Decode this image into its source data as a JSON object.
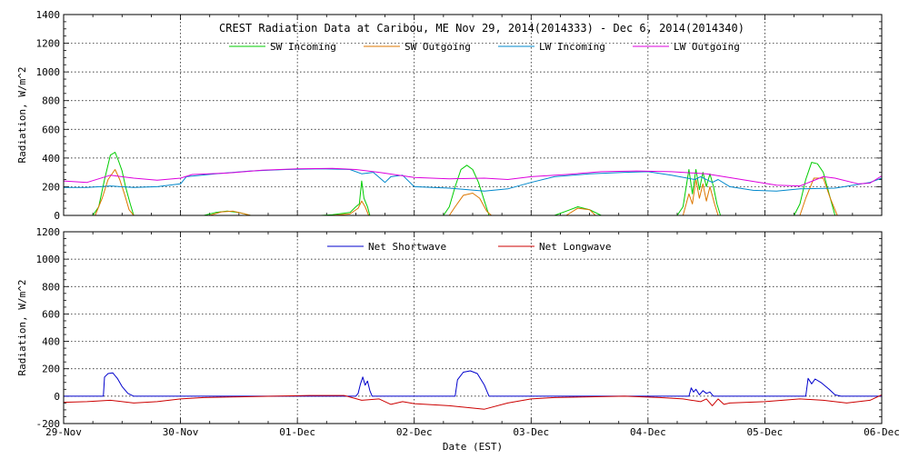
{
  "chart_data": [
    {
      "type": "line",
      "title": "CREST Radiation Data at Caribou, ME   Nov 29, 2014(2014333) - Dec  6, 2014(2014340)",
      "ylabel": "Radiation, W/m^2",
      "xlabel": "",
      "ylim": [
        0,
        1400
      ],
      "yticks": [
        0,
        200,
        400,
        600,
        800,
        1000,
        1200,
        1400
      ],
      "xlim": [
        "2014-11-29",
        "2014-12-06"
      ],
      "xticks": [
        "29-Nov",
        "30-Nov",
        "01-Dec",
        "02-Dec",
        "03-Dec",
        "04-Dec",
        "05-Dec",
        "06-Dec"
      ],
      "grid": true,
      "legend_position": "top",
      "series": [
        {
          "name": "SW Incoming",
          "color": "#00cc00",
          "points": [
            [
              0,
              0
            ],
            [
              0.25,
              0
            ],
            [
              0.3,
              60
            ],
            [
              0.35,
              250
            ],
            [
              0.4,
              420
            ],
            [
              0.44,
              440
            ],
            [
              0.47,
              380
            ],
            [
              0.5,
              310
            ],
            [
              0.53,
              200
            ],
            [
              0.57,
              80
            ],
            [
              0.6,
              0
            ],
            [
              1.2,
              0
            ],
            [
              1.3,
              20
            ],
            [
              1.4,
              30
            ],
            [
              1.5,
              20
            ],
            [
              1.6,
              0
            ],
            [
              2.2,
              0
            ],
            [
              2.3,
              5
            ],
            [
              2.45,
              20
            ],
            [
              2.5,
              60
            ],
            [
              2.53,
              80
            ],
            [
              2.55,
              240
            ],
            [
              2.57,
              120
            ],
            [
              2.6,
              60
            ],
            [
              2.62,
              0
            ],
            [
              3.25,
              0
            ],
            [
              3.3,
              60
            ],
            [
              3.35,
              200
            ],
            [
              3.4,
              320
            ],
            [
              3.45,
              350
            ],
            [
              3.5,
              320
            ],
            [
              3.55,
              230
            ],
            [
              3.6,
              100
            ],
            [
              3.64,
              0
            ],
            [
              4.2,
              0
            ],
            [
              4.3,
              30
            ],
            [
              4.4,
              60
            ],
            [
              4.5,
              40
            ],
            [
              4.6,
              0
            ],
            [
              5.25,
              0
            ],
            [
              5.3,
              60
            ],
            [
              5.35,
              320
            ],
            [
              5.38,
              150
            ],
            [
              5.41,
              320
            ],
            [
              5.44,
              180
            ],
            [
              5.47,
              300
            ],
            [
              5.5,
              200
            ],
            [
              5.53,
              290
            ],
            [
              5.56,
              200
            ],
            [
              5.59,
              80
            ],
            [
              5.62,
              0
            ],
            [
              6.25,
              0
            ],
            [
              6.3,
              80
            ],
            [
              6.35,
              250
            ],
            [
              6.4,
              370
            ],
            [
              6.45,
              360
            ],
            [
              6.5,
              300
            ],
            [
              6.55,
              150
            ],
            [
              6.6,
              0
            ],
            [
              7,
              0
            ]
          ]
        },
        {
          "name": "SW Outgoing",
          "color": "#dd7700",
          "points": [
            [
              0,
              0
            ],
            [
              0.27,
              0
            ],
            [
              0.33,
              120
            ],
            [
              0.38,
              250
            ],
            [
              0.44,
              320
            ],
            [
              0.48,
              250
            ],
            [
              0.52,
              150
            ],
            [
              0.56,
              40
            ],
            [
              0.6,
              0
            ],
            [
              1.25,
              0
            ],
            [
              1.35,
              25
            ],
            [
              1.45,
              30
            ],
            [
              1.55,
              10
            ],
            [
              1.6,
              0
            ],
            [
              2.3,
              0
            ],
            [
              2.45,
              10
            ],
            [
              2.52,
              50
            ],
            [
              2.55,
              100
            ],
            [
              2.58,
              60
            ],
            [
              2.61,
              0
            ],
            [
              3.3,
              0
            ],
            [
              3.35,
              60
            ],
            [
              3.42,
              140
            ],
            [
              3.5,
              155
            ],
            [
              3.56,
              120
            ],
            [
              3.62,
              30
            ],
            [
              3.66,
              0
            ],
            [
              4.3,
              0
            ],
            [
              4.4,
              50
            ],
            [
              4.5,
              40
            ],
            [
              4.55,
              0
            ],
            [
              5.3,
              0
            ],
            [
              5.35,
              150
            ],
            [
              5.38,
              80
            ],
            [
              5.41,
              250
            ],
            [
              5.44,
              120
            ],
            [
              5.47,
              220
            ],
            [
              5.5,
              100
            ],
            [
              5.53,
              200
            ],
            [
              5.57,
              80
            ],
            [
              5.6,
              0
            ],
            [
              6.3,
              0
            ],
            [
              6.35,
              120
            ],
            [
              6.42,
              260
            ],
            [
              6.5,
              260
            ],
            [
              6.56,
              120
            ],
            [
              6.62,
              0
            ],
            [
              7,
              0
            ]
          ]
        },
        {
          "name": "LW Incoming",
          "color": "#0088cc",
          "points": [
            [
              0,
              195
            ],
            [
              0.2,
              195
            ],
            [
              0.4,
              205
            ],
            [
              0.6,
              195
            ],
            [
              0.8,
              200
            ],
            [
              1.0,
              220
            ],
            [
              1.05,
              270
            ],
            [
              1.3,
              290
            ],
            [
              1.6,
              310
            ],
            [
              1.9,
              320
            ],
            [
              2.2,
              325
            ],
            [
              2.45,
              320
            ],
            [
              2.55,
              290
            ],
            [
              2.65,
              300
            ],
            [
              2.75,
              230
            ],
            [
              2.8,
              270
            ],
            [
              2.9,
              280
            ],
            [
              3.0,
              200
            ],
            [
              3.3,
              190
            ],
            [
              3.6,
              170
            ],
            [
              3.8,
              185
            ],
            [
              4.0,
              230
            ],
            [
              4.2,
              270
            ],
            [
              4.5,
              290
            ],
            [
              4.8,
              300
            ],
            [
              5.0,
              305
            ],
            [
              5.2,
              280
            ],
            [
              5.4,
              250
            ],
            [
              5.45,
              270
            ],
            [
              5.55,
              230
            ],
            [
              5.6,
              250
            ],
            [
              5.7,
              200
            ],
            [
              5.9,
              175
            ],
            [
              6.1,
              170
            ],
            [
              6.3,
              185
            ],
            [
              6.6,
              190
            ],
            [
              6.9,
              230
            ],
            [
              7.0,
              260
            ]
          ]
        },
        {
          "name": "LW Outgoing",
          "color": "#dd00dd",
          "points": [
            [
              0,
              240
            ],
            [
              0.2,
              230
            ],
            [
              0.4,
              280
            ],
            [
              0.6,
              260
            ],
            [
              0.8,
              245
            ],
            [
              1.0,
              260
            ],
            [
              1.1,
              285
            ],
            [
              1.4,
              295
            ],
            [
              1.7,
              315
            ],
            [
              2.0,
              325
            ],
            [
              2.3,
              328
            ],
            [
              2.5,
              320
            ],
            [
              2.7,
              300
            ],
            [
              3.0,
              265
            ],
            [
              3.3,
              255
            ],
            [
              3.6,
              260
            ],
            [
              3.8,
              250
            ],
            [
              4.0,
              270
            ],
            [
              4.3,
              285
            ],
            [
              4.6,
              305
            ],
            [
              4.9,
              310
            ],
            [
              5.2,
              305
            ],
            [
              5.5,
              290
            ],
            [
              5.8,
              250
            ],
            [
              6.1,
              210
            ],
            [
              6.3,
              205
            ],
            [
              6.5,
              270
            ],
            [
              6.6,
              260
            ],
            [
              6.8,
              220
            ],
            [
              6.9,
              225
            ],
            [
              7.0,
              275
            ]
          ]
        }
      ]
    },
    {
      "type": "line",
      "title": "",
      "ylabel": "Radiation, W/m^2",
      "xlabel": "Date (EST)",
      "ylim": [
        -200,
        1200
      ],
      "yticks": [
        -200,
        0,
        200,
        400,
        600,
        800,
        1000,
        1200
      ],
      "xlim": [
        "2014-11-29",
        "2014-12-06"
      ],
      "xticks": [
        "29-Nov",
        "30-Nov",
        "01-Dec",
        "02-Dec",
        "03-Dec",
        "04-Dec",
        "05-Dec",
        "06-Dec"
      ],
      "grid": true,
      "legend_position": "top",
      "series": [
        {
          "name": "Net Shortwave",
          "color": "#0000cc",
          "points": [
            [
              0,
              0
            ],
            [
              0.34,
              0
            ],
            [
              0.35,
              140
            ],
            [
              0.38,
              165
            ],
            [
              0.42,
              170
            ],
            [
              0.46,
              130
            ],
            [
              0.5,
              70
            ],
            [
              0.55,
              20
            ],
            [
              0.6,
              0
            ],
            [
              2.5,
              0
            ],
            [
              2.52,
              20
            ],
            [
              2.54,
              90
            ],
            [
              2.56,
              140
            ],
            [
              2.58,
              80
            ],
            [
              2.6,
              110
            ],
            [
              2.62,
              40
            ],
            [
              2.64,
              0
            ],
            [
              3.35,
              0
            ],
            [
              3.37,
              120
            ],
            [
              3.42,
              175
            ],
            [
              3.48,
              185
            ],
            [
              3.54,
              165
            ],
            [
              3.6,
              80
            ],
            [
              3.64,
              0
            ],
            [
              5.35,
              0
            ],
            [
              5.37,
              60
            ],
            [
              5.39,
              30
            ],
            [
              5.41,
              50
            ],
            [
              5.44,
              10
            ],
            [
              5.47,
              40
            ],
            [
              5.5,
              20
            ],
            [
              5.53,
              30
            ],
            [
              5.56,
              0
            ],
            [
              6.35,
              0
            ],
            [
              6.37,
              130
            ],
            [
              6.4,
              90
            ],
            [
              6.43,
              125
            ],
            [
              6.48,
              100
            ],
            [
              6.55,
              50
            ],
            [
              6.6,
              10
            ],
            [
              6.65,
              0
            ],
            [
              7,
              0
            ]
          ]
        },
        {
          "name": "Net Longwave",
          "color": "#cc0000",
          "points": [
            [
              0,
              -45
            ],
            [
              0.2,
              -40
            ],
            [
              0.4,
              -30
            ],
            [
              0.6,
              -50
            ],
            [
              0.8,
              -40
            ],
            [
              1.0,
              -20
            ],
            [
              1.2,
              -10
            ],
            [
              1.5,
              -5
            ],
            [
              1.8,
              0
            ],
            [
              2.1,
              5
            ],
            [
              2.4,
              5
            ],
            [
              2.55,
              -30
            ],
            [
              2.7,
              -20
            ],
            [
              2.8,
              -60
            ],
            [
              2.9,
              -40
            ],
            [
              3.0,
              -55
            ],
            [
              3.3,
              -70
            ],
            [
              3.6,
              -95
            ],
            [
              3.8,
              -50
            ],
            [
              4.0,
              -20
            ],
            [
              4.2,
              -10
            ],
            [
              4.5,
              -5
            ],
            [
              4.8,
              0
            ],
            [
              5.1,
              -10
            ],
            [
              5.3,
              -20
            ],
            [
              5.45,
              -40
            ],
            [
              5.5,
              -20
            ],
            [
              5.55,
              -70
            ],
            [
              5.6,
              -20
            ],
            [
              5.65,
              -60
            ],
            [
              5.7,
              -50
            ],
            [
              6.0,
              -40
            ],
            [
              6.3,
              -20
            ],
            [
              6.5,
              -30
            ],
            [
              6.7,
              -50
            ],
            [
              6.9,
              -30
            ],
            [
              7.0,
              10
            ]
          ]
        }
      ]
    }
  ]
}
